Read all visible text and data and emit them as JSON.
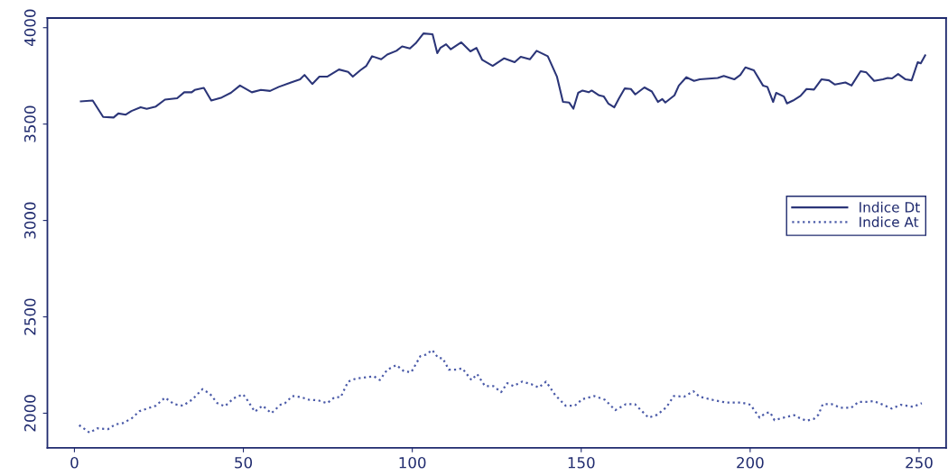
{
  "chart_data": {
    "type": "line",
    "xlim": [
      -8,
      258
    ],
    "ylim": [
      1820,
      4050
    ],
    "xticks": [
      0,
      50,
      100,
      150,
      200,
      250
    ],
    "yticks": [
      2000,
      2500,
      3000,
      3500,
      4000
    ],
    "grid": false,
    "legend": "right",
    "marker": "none",
    "series": [
      {
        "name": "Indice Dt",
        "color": "#2b3578",
        "line_style": "solid",
        "x": [
          1.9,
          5.4,
          8.5,
          11.6,
          13,
          15.2,
          16.9,
          19.6,
          21.4,
          24.1,
          26.8,
          30.4,
          32.5,
          34.7,
          35.6,
          38.3,
          40.5,
          43.6,
          46.3,
          49,
          52.5,
          55.2,
          57.9,
          60.5,
          64.1,
          66.8,
          68.1,
          70.4,
          72.5,
          74.8,
          78.3,
          81,
          82.4,
          84.6,
          86.4,
          88.1,
          90.8,
          92.6,
          95.3,
          97,
          99.3,
          101,
          103.3,
          106,
          107.4,
          108.3,
          110,
          111.4,
          114.5,
          117.2,
          119,
          120.7,
          123.8,
          127.2,
          130.3,
          132.1,
          134.8,
          136.8,
          140.1,
          142.8,
          144.6,
          146.4,
          147.7,
          149.1,
          150.4,
          152.2,
          153.1,
          155.3,
          156.7,
          158,
          159.8,
          161.2,
          162.9,
          164.7,
          166,
          168.7,
          170.9,
          172.7,
          174,
          174.9,
          177.6,
          178.9,
          181.1,
          183.4,
          185.1,
          190.4,
          192.2,
          195.3,
          197.1,
          198.6,
          201.1,
          203.8,
          205.1,
          206.8,
          207.7,
          210,
          210.9,
          212.7,
          214.9,
          216.7,
          218.9,
          221.1,
          223.3,
          225.1,
          228.2,
          230,
          232.7,
          234.4,
          236.7,
          239.3,
          240.7,
          242,
          243.8,
          246,
          247.8,
          249.6,
          250.5,
          251.8
        ],
        "values": [
          3618,
          3622,
          3537,
          3534,
          3555,
          3549,
          3568,
          3587,
          3579,
          3591,
          3627,
          3634,
          3665,
          3665,
          3677,
          3688,
          3622,
          3638,
          3662,
          3700,
          3665,
          3677,
          3672,
          3693,
          3716,
          3732,
          3755,
          3708,
          3746,
          3746,
          3783,
          3771,
          3746,
          3779,
          3802,
          3852,
          3836,
          3861,
          3880,
          3903,
          3892,
          3919,
          3970,
          3966,
          3868,
          3895,
          3914,
          3888,
          3924,
          3877,
          3895,
          3833,
          3802,
          3841,
          3821,
          3849,
          3836,
          3880,
          3852,
          3747,
          3615,
          3612,
          3580,
          3662,
          3674,
          3665,
          3674,
          3649,
          3643,
          3607,
          3587,
          3634,
          3685,
          3682,
          3654,
          3690,
          3669,
          3615,
          3630,
          3612,
          3649,
          3700,
          3743,
          3724,
          3732,
          3739,
          3750,
          3732,
          3755,
          3794,
          3779,
          3700,
          3693,
          3615,
          3662,
          3643,
          3607,
          3622,
          3646,
          3682,
          3679,
          3732,
          3727,
          3705,
          3716,
          3700,
          3774,
          3768,
          3724,
          3732,
          3739,
          3737,
          3760,
          3732,
          3727,
          3821,
          3815,
          3856
        ]
      },
      {
        "name": "Indice At",
        "color": "#4a5aa8",
        "line_style": "dotted",
        "x": [
          1.4,
          4.5,
          6.8,
          9.9,
          12.1,
          14.4,
          17,
          19.3,
          21.5,
          24.1,
          26.8,
          29.5,
          32.1,
          34.8,
          37.9,
          40.1,
          42.3,
          44.5,
          47.2,
          49.9,
          50.8,
          53.4,
          55.7,
          58.3,
          61,
          62.3,
          64.5,
          67.2,
          69.4,
          72.1,
          74.8,
          77,
          78.8,
          81,
          83.2,
          86.4,
          88.6,
          90.4,
          92.6,
          95.3,
          97.5,
          99.7,
          102.4,
          104.1,
          105.9,
          107.7,
          109,
          110.8,
          113,
          114.8,
          117.5,
          119.2,
          121.5,
          124,
          126.3,
          128.1,
          129.9,
          132.5,
          135.2,
          137.4,
          139.6,
          142.3,
          145.4,
          148.1,
          150.3,
          153.9,
          157,
          160.1,
          163.2,
          165.9,
          169.9,
          172.5,
          175.2,
          177.4,
          180.5,
          183.2,
          185,
          189.4,
          193,
          197.4,
          200.1,
          202.8,
          204.5,
          205.9,
          207.2,
          209.9,
          213,
          214.4,
          216.6,
          218.9,
          220.2,
          221.5,
          224.2,
          226.8,
          229.9,
          232.1,
          234.4,
          236.6,
          239.3,
          241.9,
          244.6,
          248.2,
          250.8
        ],
        "values": [
          1938,
          1899,
          1922,
          1917,
          1942,
          1949,
          1974,
          2011,
          2024,
          2039,
          2081,
          2047,
          2039,
          2070,
          2125,
          2101,
          2052,
          2036,
          2078,
          2098,
          2078,
          2008,
          2039,
          2000,
          2044,
          2052,
          2089,
          2083,
          2070,
          2067,
          2052,
          2083,
          2083,
          2164,
          2179,
          2187,
          2192,
          2172,
          2226,
          2250,
          2218,
          2213,
          2296,
          2304,
          2328,
          2286,
          2286,
          2226,
          2226,
          2233,
          2172,
          2203,
          2141,
          2141,
          2109,
          2156,
          2141,
          2164,
          2151,
          2133,
          2164,
          2094,
          2039,
          2039,
          2073,
          2089,
          2070,
          2016,
          2047,
          2047,
          1977,
          1992,
          2031,
          2089,
          2086,
          2114,
          2086,
          2067,
          2055,
          2055,
          2044,
          1977,
          2000,
          2005,
          1964,
          1977,
          1990,
          1977,
          1961,
          1971,
          1992,
          2047,
          2047,
          2028,
          2028,
          2059,
          2059,
          2063,
          2044,
          2024,
          2044,
          2033,
          2052
        ]
      }
    ]
  }
}
